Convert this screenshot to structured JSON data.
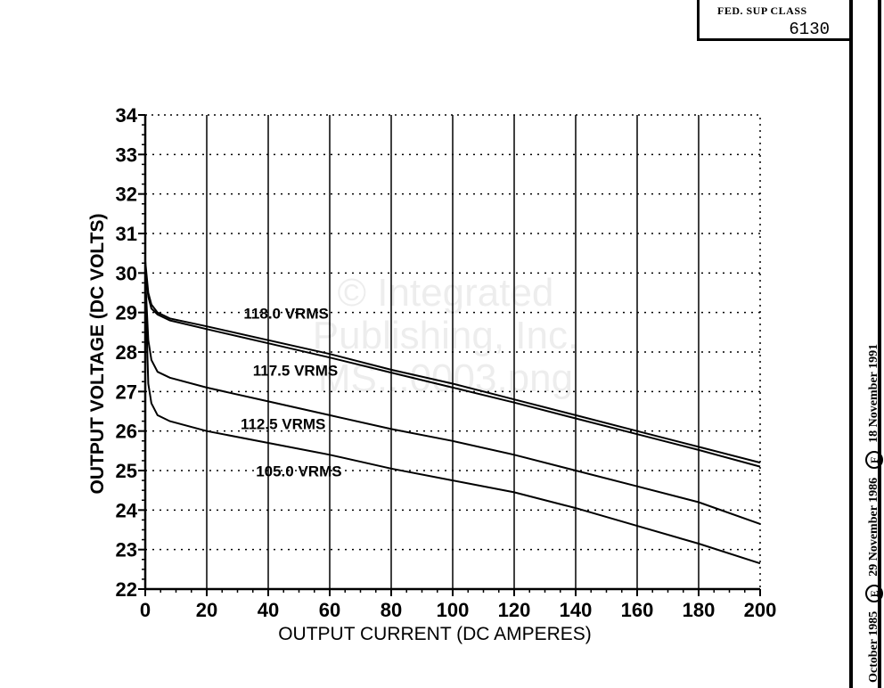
{
  "fed_sup_class": {
    "label": "FED. SUP CLASS",
    "value": "6130"
  },
  "side_strip": {
    "prefix": "October 1985",
    "mark_e": "E",
    "middle": "29 November 1986",
    "mark_f": "F",
    "suffix": "18 November 1991"
  },
  "watermark": {
    "line1": "© Integrated",
    "line2": "Publishing, Inc.",
    "line3": "MS...0003.png"
  },
  "chart_data": {
    "type": "line",
    "title": "",
    "xlabel": "OUTPUT CURRENT (DC AMPERES)",
    "ylabel": "OUTPUT VOLTAGE (DC VOLTS)",
    "xlim": [
      0,
      200
    ],
    "ylim": [
      22,
      34
    ],
    "xticks": [
      0,
      20,
      40,
      60,
      80,
      100,
      120,
      140,
      160,
      180,
      200
    ],
    "yticks": [
      22,
      23,
      24,
      25,
      26,
      27,
      28,
      29,
      30,
      31,
      32,
      33,
      34
    ],
    "grid": true,
    "series": [
      {
        "name": "118.0 VRMS",
        "x": [
          0,
          1,
          2,
          4,
          8,
          20,
          40,
          60,
          80,
          100,
          120,
          140,
          160,
          180,
          200
        ],
        "y": [
          30.3,
          29.5,
          29.2,
          29.0,
          28.85,
          28.65,
          28.3,
          27.95,
          27.55,
          27.2,
          26.8,
          26.4,
          26.0,
          25.6,
          25.2
        ]
      },
      {
        "name": "117.5 VRMS",
        "x": [
          0,
          1,
          2,
          4,
          8,
          20,
          40,
          60,
          80,
          100,
          120,
          140,
          160,
          180,
          200
        ],
        "y": [
          30.1,
          29.4,
          29.1,
          28.95,
          28.8,
          28.58,
          28.22,
          27.86,
          27.48,
          27.1,
          26.72,
          26.32,
          25.92,
          25.52,
          25.1
        ]
      },
      {
        "name": "112.5 VRMS",
        "x": [
          0,
          1,
          2,
          4,
          8,
          20,
          40,
          60,
          80,
          100,
          120,
          140,
          160,
          180,
          200
        ],
        "y": [
          29.9,
          28.3,
          27.8,
          27.5,
          27.35,
          27.1,
          26.75,
          26.4,
          26.05,
          25.75,
          25.4,
          25.0,
          24.6,
          24.2,
          23.65
        ]
      },
      {
        "name": "105.0 VRMS",
        "x": [
          0,
          1,
          2,
          4,
          8,
          20,
          40,
          60,
          80,
          100,
          120,
          140,
          160,
          180,
          200
        ],
        "y": [
          29.7,
          27.2,
          26.7,
          26.4,
          26.25,
          26.0,
          25.7,
          25.4,
          25.05,
          24.75,
          24.45,
          24.05,
          23.6,
          23.15,
          22.65
        ]
      }
    ],
    "annotations": [
      {
        "text": "118.0 VRMS",
        "x": 32,
        "y": 28.85
      },
      {
        "text": "117.5 VRMS",
        "x": 35,
        "y": 27.4
      },
      {
        "text": "112.5 VRMS",
        "x": 31,
        "y": 26.05
      },
      {
        "text": "105.0 VRMS",
        "x": 36,
        "y": 24.85
      }
    ]
  }
}
